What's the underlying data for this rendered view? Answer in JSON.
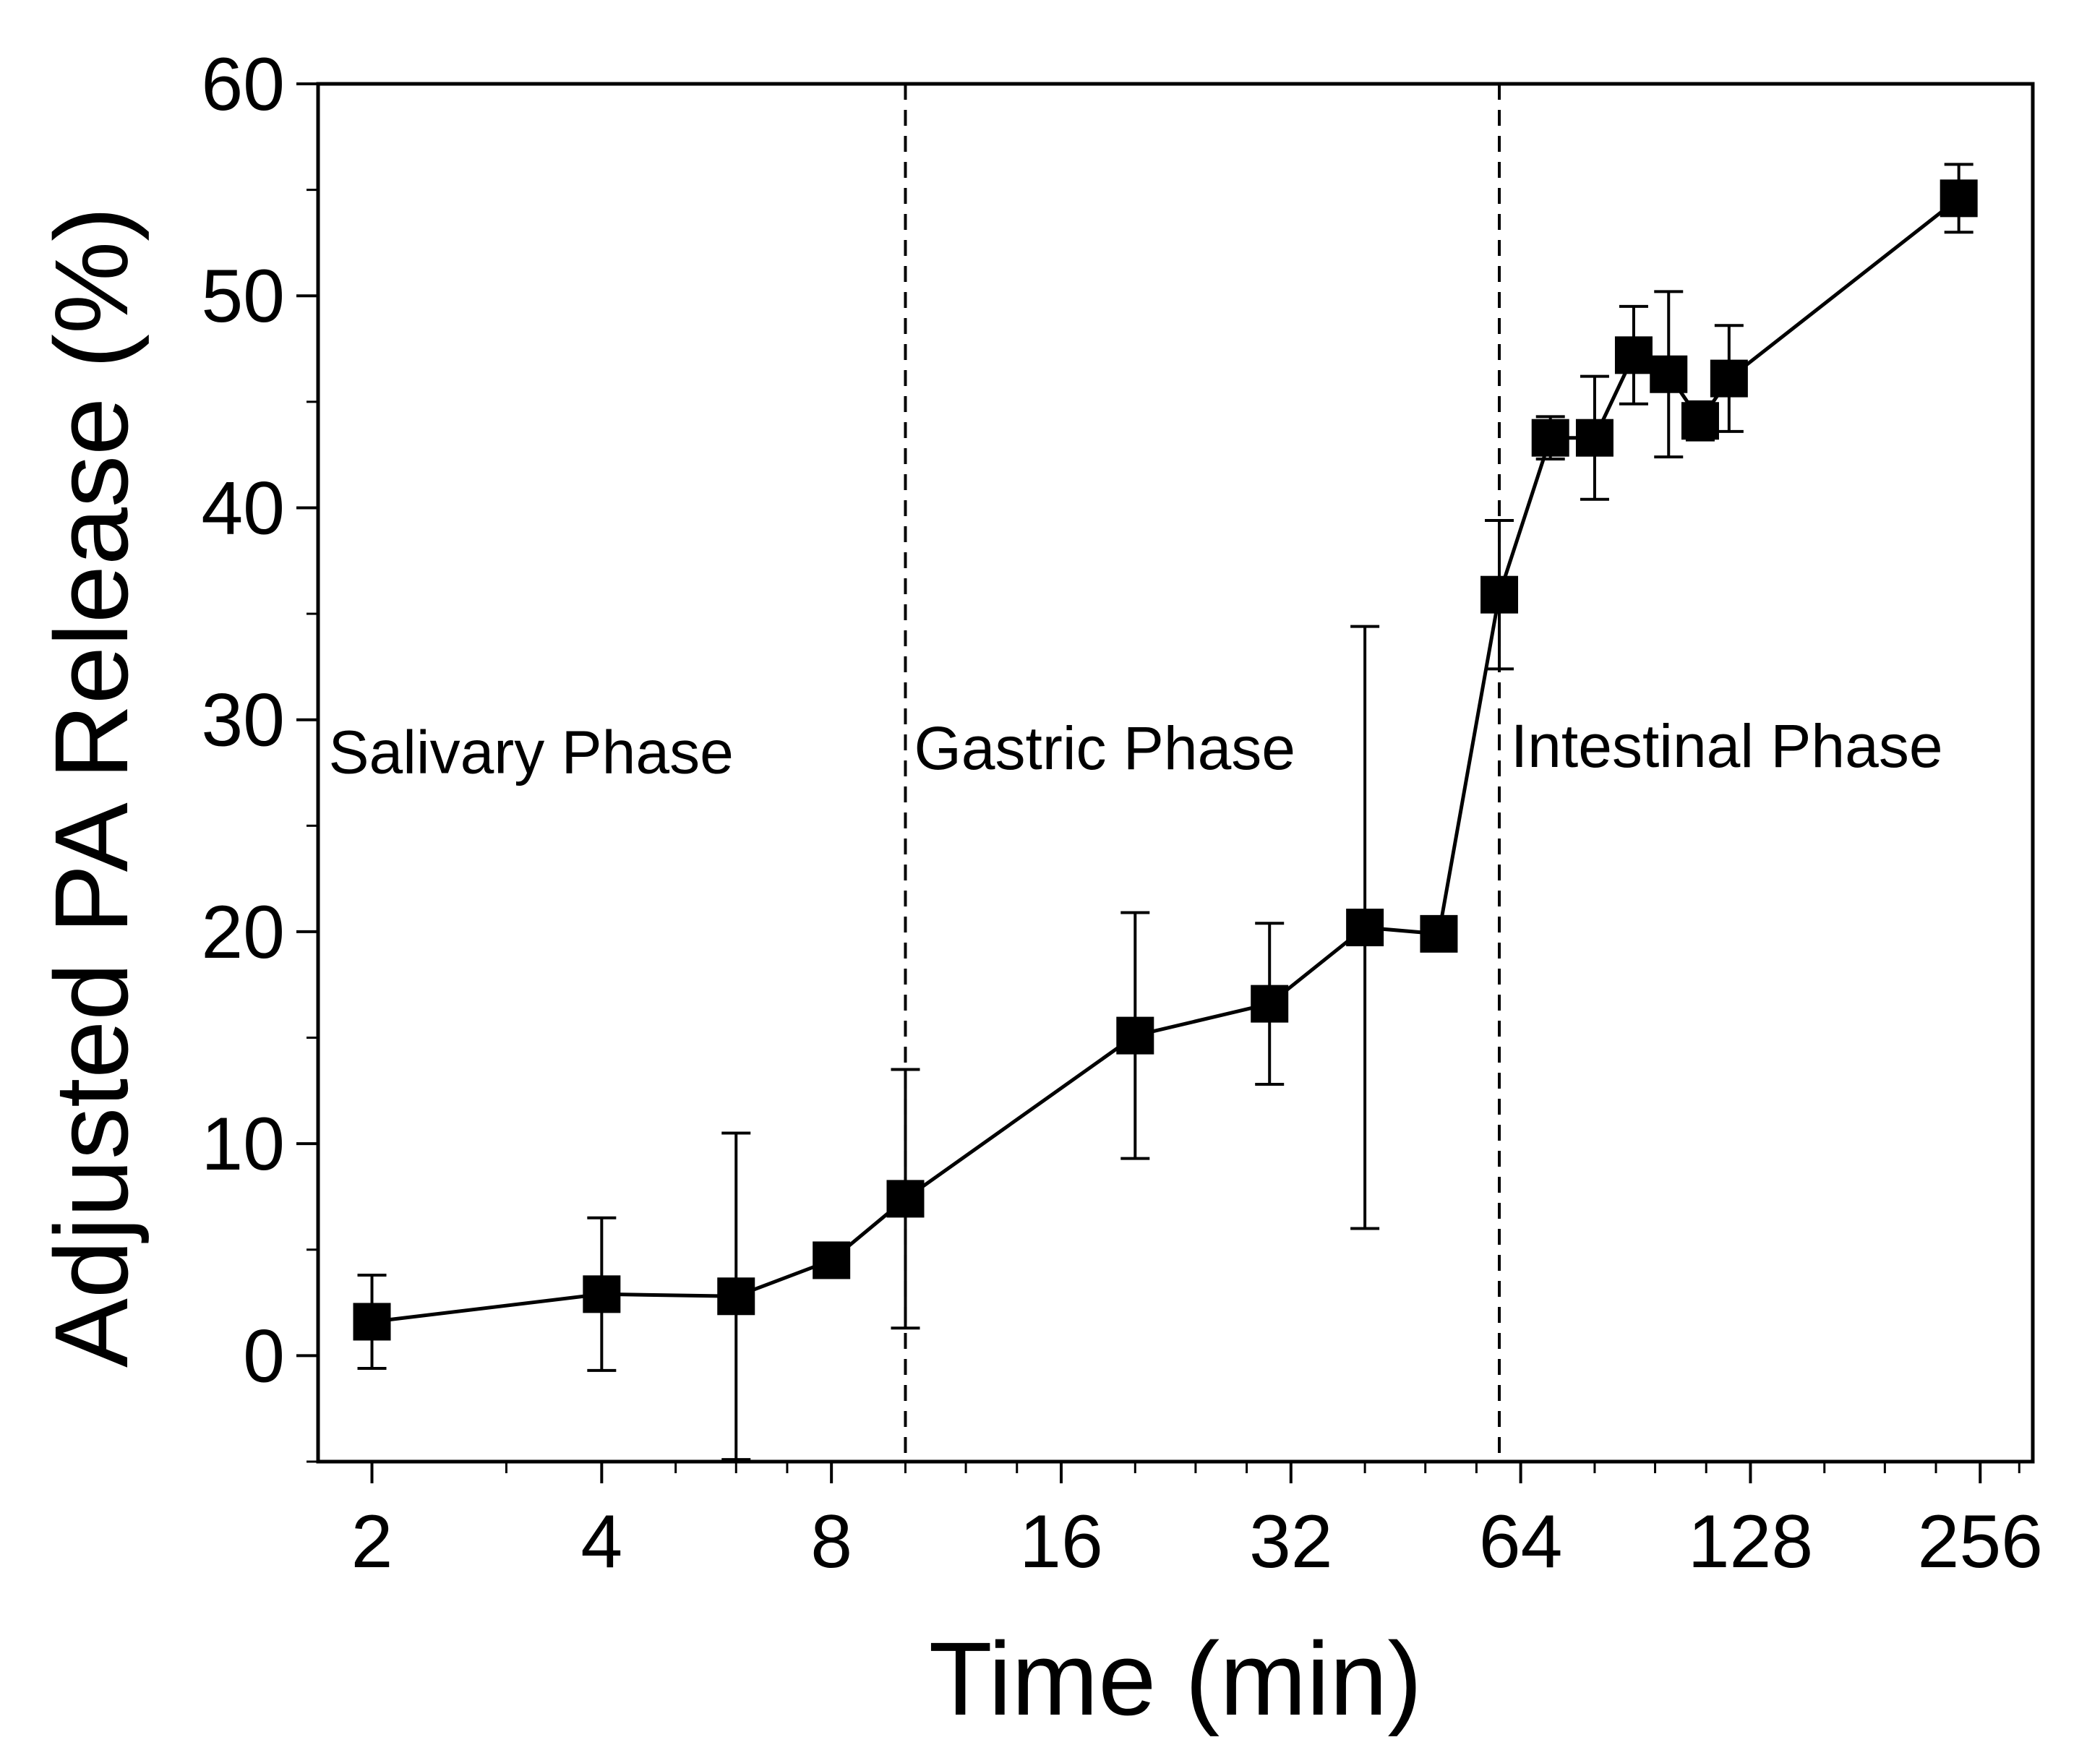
{
  "chart_data": {
    "type": "scatter",
    "title": "",
    "xlabel": "Time (min)",
    "ylabel": "Adjusted PA Release (%)",
    "x_scale": "log2",
    "xlim": [
      1.7,
      300
    ],
    "ylim": [
      -5,
      60
    ],
    "x_ticks": [
      2,
      4,
      8,
      16,
      32,
      64,
      128,
      256
    ],
    "x_tick_labels": [
      "2",
      "4",
      "8",
      "16",
      "32",
      "64",
      "128",
      "256"
    ],
    "y_ticks": [
      0,
      10,
      20,
      30,
      40,
      50,
      60
    ],
    "y_tick_labels": [
      "0",
      "10",
      "20",
      "30",
      "40",
      "50",
      "60"
    ],
    "grid": false,
    "phase_boundaries": [
      10,
      60
    ],
    "phases": [
      {
        "label": "Salivary Phase",
        "anchor_x": 2,
        "anchor_y": 28.5
      },
      {
        "label": "Gastric Phase",
        "anchor_x": 10,
        "anchor_y": 28.7
      },
      {
        "label": "Intestinal Phase",
        "anchor_x": 60.5,
        "anchor_y": 28.8
      }
    ],
    "series": [
      {
        "name": "Adjusted PA Release",
        "marker": "square",
        "color": "#000000",
        "points": [
          {
            "x": 2,
            "y": 1.6,
            "err": 2.2
          },
          {
            "x": 4,
            "y": 2.9,
            "err": 3.6
          },
          {
            "x": 6,
            "y": 2.8,
            "err": 7.7
          },
          {
            "x": 8,
            "y": 4.5,
            "err": 0.5
          },
          {
            "x": 10,
            "y": 7.4,
            "err": 6.1
          },
          {
            "x": 20,
            "y": 15.1,
            "err": 5.8
          },
          {
            "x": 30,
            "y": 16.6,
            "err": 3.8
          },
          {
            "x": 40,
            "y": 20.2,
            "err": 14.2
          },
          {
            "x": 50,
            "y": 19.9,
            "err": 0.6
          },
          {
            "x": 60,
            "y": 35.9,
            "err": 3.5
          },
          {
            "x": 70,
            "y": 43.3,
            "err": 1.0
          },
          {
            "x": 80,
            "y": 43.3,
            "err": 2.9
          },
          {
            "x": 90,
            "y": 47.2,
            "err": 2.3
          },
          {
            "x": 100,
            "y": 46.3,
            "err": 3.9
          },
          {
            "x": 110,
            "y": 44.1,
            "err": 0.9
          },
          {
            "x": 120,
            "y": 46.1,
            "err": 2.5
          },
          {
            "x": 240,
            "y": 54.6,
            "err": 1.6
          }
        ]
      }
    ]
  }
}
